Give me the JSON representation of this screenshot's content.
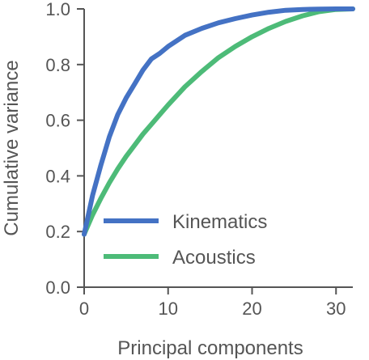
{
  "chart_data": {
    "type": "line",
    "xlabel": "Principal components",
    "ylabel": "Cumulative variance",
    "xlim": [
      0,
      32
    ],
    "ylim": [
      0,
      1
    ],
    "x_ticks": [
      0,
      10,
      20,
      30
    ],
    "y_ticks": [
      0.0,
      0.2,
      0.4,
      0.6,
      0.8,
      1.0
    ],
    "y_tick_labels": [
      "0.0",
      "0.2",
      "0.4",
      "0.6",
      "0.8",
      "1.0"
    ],
    "grid": false,
    "legend_position": "bottom-right",
    "series": [
      {
        "name": "Kinematics",
        "color": "#4472c4",
        "x": [
          0,
          1,
          2,
          3,
          4,
          5,
          6,
          7,
          8,
          9,
          10,
          12,
          14,
          16,
          18,
          20,
          22,
          24,
          26,
          28,
          30,
          32
        ],
        "y": [
          0.19,
          0.33,
          0.44,
          0.54,
          0.62,
          0.68,
          0.73,
          0.78,
          0.82,
          0.84,
          0.865,
          0.905,
          0.93,
          0.95,
          0.965,
          0.978,
          0.988,
          0.995,
          0.998,
          0.999,
          1.0,
          1.0
        ]
      },
      {
        "name": "Acoustics",
        "color": "#4dbb78",
        "x": [
          0,
          1,
          2,
          3,
          4,
          5,
          6,
          7,
          8,
          9,
          10,
          12,
          14,
          16,
          18,
          20,
          22,
          24,
          26,
          28,
          30,
          32
        ],
        "y": [
          0.19,
          0.26,
          0.32,
          0.375,
          0.425,
          0.47,
          0.51,
          0.55,
          0.585,
          0.62,
          0.655,
          0.72,
          0.775,
          0.825,
          0.865,
          0.9,
          0.93,
          0.955,
          0.975,
          0.99,
          0.998,
          1.0
        ]
      }
    ]
  }
}
